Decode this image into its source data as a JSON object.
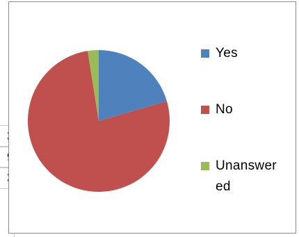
{
  "background_table": {
    "cells": [
      "3",
      "9",
      "3"
    ]
  },
  "chart_data": {
    "type": "pie",
    "title": "",
    "slices": [
      {
        "label": "Yes",
        "value": 20.5,
        "color": "#4f81bd"
      },
      {
        "label": "No",
        "value": 77.0,
        "color": "#c0504d"
      },
      {
        "label": "Unanswered",
        "value": 2.5,
        "color": "#9bbb59"
      }
    ],
    "start_angle_deg": 0,
    "legend_position": "right"
  },
  "legend": {
    "items": [
      {
        "label": "Yes",
        "color": "#4f81bd"
      },
      {
        "label": "No",
        "color": "#c0504d"
      },
      {
        "label": "Unanswer ed",
        "color": "#9bbb59"
      }
    ]
  }
}
